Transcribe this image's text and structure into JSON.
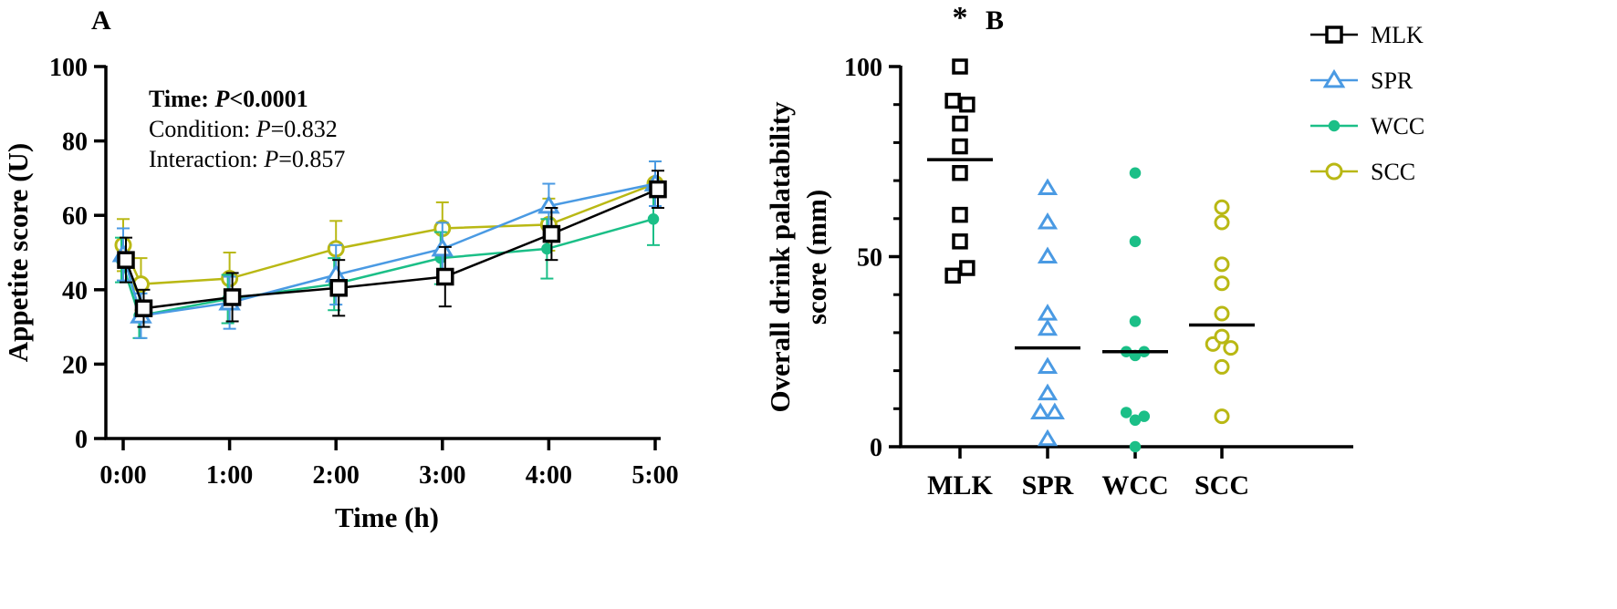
{
  "panel_a": {
    "label": "A"
  },
  "panel_b": {
    "label": "B"
  },
  "colors": {
    "MLK": "#000000",
    "SPR": "#4a9ae3",
    "WCC": "#1bbf87",
    "SCC": "#b9b814"
  },
  "chart_data": [
    {
      "type": "line",
      "title": "",
      "xlabel": "Time  (h)",
      "ylabel": "Appetite score (U)",
      "categories": [
        "0:00",
        "1:00",
        "2:00",
        "3:00",
        "4:00",
        "5:00"
      ],
      "ylim": [
        0,
        100
      ],
      "yticks": [
        0,
        20,
        40,
        60,
        80,
        100
      ],
      "annotations": [
        {
          "lead": "Time: ",
          "italic": "P",
          "rest": "<0.0001",
          "bold": true
        },
        {
          "lead": "Condition: ",
          "italic": "P",
          "rest": "=0.832",
          "bold": false
        },
        {
          "lead": "Interaction: ",
          "italic": "P",
          "rest": "=0.857",
          "bold": false
        }
      ],
      "series": [
        {
          "name": "MLK",
          "marker": "square",
          "x": [
            0,
            0.167,
            1,
            2,
            3,
            4,
            5
          ],
          "values": [
            48,
            35,
            38,
            40.5,
            43.5,
            55,
            67
          ],
          "error": [
            6,
            5,
            6.5,
            7.5,
            8,
            7,
            5
          ]
        },
        {
          "name": "SPR",
          "marker": "triangle",
          "x": [
            0,
            0.167,
            1,
            2,
            3,
            4,
            5
          ],
          "values": [
            49.5,
            33,
            36.5,
            44,
            51,
            62.5,
            68.5
          ],
          "error": [
            7,
            6,
            7,
            8,
            7,
            6,
            6
          ]
        },
        {
          "name": "WCC",
          "marker": "dot",
          "x": [
            0,
            0.167,
            1,
            2,
            3,
            4,
            5
          ],
          "values": [
            48,
            33,
            37.5,
            41.5,
            48.5,
            51,
            59
          ],
          "error": [
            6,
            6,
            6.5,
            7,
            7,
            8,
            7
          ]
        },
        {
          "name": "SCC",
          "marker": "circle",
          "x": [
            0,
            0.167,
            1,
            2,
            3,
            4,
            5
          ],
          "values": [
            52,
            41.5,
            43,
            51,
            56.5,
            57.5,
            68.5
          ],
          "error": [
            7,
            7,
            7,
            7.5,
            7,
            7,
            6
          ]
        }
      ]
    },
    {
      "type": "scatter",
      "title": "",
      "xlabel": "",
      "ylabel_lines": [
        "Overall drink palatability",
        "score (mm)"
      ],
      "categories": [
        "MLK",
        "SPR",
        "WCC",
        "SCC"
      ],
      "ylim": [
        0,
        100
      ],
      "yticks": [
        0,
        50,
        100
      ],
      "significance": {
        "category": "MLK",
        "label": "*"
      },
      "legend": {
        "position": "top-right",
        "entries": [
          "MLK",
          "SPR",
          "WCC",
          "SCC"
        ]
      },
      "groups": [
        {
          "name": "MLK",
          "marker": "square",
          "mean": 75.5,
          "points": [
            {
              "dx": 0,
              "y": 100
            },
            {
              "dx": -0.28,
              "y": 91
            },
            {
              "dx": 0.28,
              "y": 90
            },
            {
              "dx": 0,
              "y": 85
            },
            {
              "dx": 0,
              "y": 79
            },
            {
              "dx": 0,
              "y": 72
            },
            {
              "dx": 0,
              "y": 61
            },
            {
              "dx": 0,
              "y": 54
            },
            {
              "dx": -0.28,
              "y": 45
            },
            {
              "dx": 0.28,
              "y": 47
            }
          ]
        },
        {
          "name": "SPR",
          "marker": "triangle",
          "mean": 26,
          "points": [
            {
              "dx": 0,
              "y": 68
            },
            {
              "dx": 0,
              "y": 59
            },
            {
              "dx": 0,
              "y": 50
            },
            {
              "dx": 0,
              "y": 35
            },
            {
              "dx": 0,
              "y": 31
            },
            {
              "dx": 0,
              "y": 21
            },
            {
              "dx": 0,
              "y": 14
            },
            {
              "dx": -0.28,
              "y": 9
            },
            {
              "dx": 0.28,
              "y": 9
            },
            {
              "dx": 0,
              "y": 2
            }
          ]
        },
        {
          "name": "WCC",
          "marker": "dot",
          "mean": 25,
          "points": [
            {
              "dx": 0,
              "y": 72
            },
            {
              "dx": 0,
              "y": 54
            },
            {
              "dx": 0,
              "y": 33
            },
            {
              "dx": -0.35,
              "y": 25
            },
            {
              "dx": 0,
              "y": 24
            },
            {
              "dx": 0.35,
              "y": 25
            },
            {
              "dx": -0.35,
              "y": 9
            },
            {
              "dx": 0,
              "y": 7
            },
            {
              "dx": 0.35,
              "y": 8
            },
            {
              "dx": 0,
              "y": 0
            }
          ]
        },
        {
          "name": "SCC",
          "marker": "circle",
          "mean": 32,
          "points": [
            {
              "dx": 0,
              "y": 63
            },
            {
              "dx": 0,
              "y": 59
            },
            {
              "dx": 0,
              "y": 48
            },
            {
              "dx": 0,
              "y": 43
            },
            {
              "dx": 0,
              "y": 35
            },
            {
              "dx": -0.35,
              "y": 27
            },
            {
              "dx": 0,
              "y": 29
            },
            {
              "dx": 0.35,
              "y": 26
            },
            {
              "dx": 0,
              "y": 21
            },
            {
              "dx": 0,
              "y": 8
            }
          ]
        }
      ]
    }
  ]
}
